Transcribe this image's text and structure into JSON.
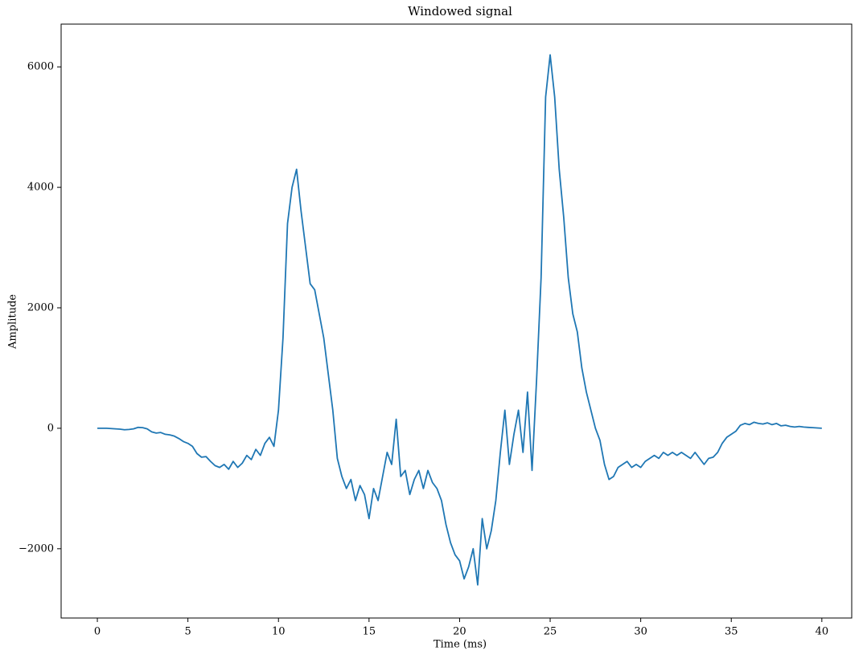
{
  "chart_data": {
    "type": "line",
    "title": "Windowed signal",
    "x_label": "Time (ms)",
    "y_label": "Amplitude",
    "x": [
      0,
      0.25,
      0.5,
      0.75,
      1,
      1.25,
      1.5,
      1.75,
      2,
      2.25,
      2.5,
      2.75,
      3,
      3.25,
      3.5,
      3.75,
      4,
      4.25,
      4.5,
      4.75,
      5,
      5.25,
      5.5,
      5.75,
      6,
      6.25,
      6.5,
      6.75,
      7,
      7.25,
      7.5,
      7.75,
      8,
      8.25,
      8.5,
      8.75,
      9,
      9.25,
      9.5,
      9.75,
      10,
      10.25,
      10.5,
      10.75,
      11,
      11.25,
      11.5,
      11.75,
      12,
      12.25,
      12.5,
      12.75,
      13,
      13.25,
      13.5,
      13.75,
      14,
      14.25,
      14.5,
      14.75,
      15,
      15.25,
      15.5,
      15.75,
      16,
      16.25,
      16.5,
      16.75,
      17,
      17.25,
      17.5,
      17.75,
      18,
      18.25,
      18.5,
      18.75,
      19,
      19.25,
      19.5,
      19.75,
      20,
      20.25,
      20.5,
      20.75,
      21,
      21.25,
      21.5,
      21.75,
      22,
      22.25,
      22.5,
      22.75,
      23,
      23.25,
      23.5,
      23.75,
      24,
      24.25,
      24.5,
      24.75,
      25,
      25.25,
      25.5,
      25.75,
      26,
      26.25,
      26.5,
      26.75,
      27,
      27.25,
      27.5,
      27.75,
      28,
      28.25,
      28.5,
      28.75,
      29,
      29.25,
      29.5,
      29.75,
      30,
      30.25,
      30.5,
      30.75,
      31,
      31.25,
      31.5,
      31.75,
      32,
      32.25,
      32.5,
      32.75,
      33,
      33.25,
      33.5,
      33.75,
      34,
      34.25,
      34.5,
      34.75,
      35,
      35.25,
      35.5,
      35.75,
      36,
      36.25,
      36.5,
      36.75,
      37,
      37.25,
      37.5,
      37.75,
      38,
      38.25,
      38.5,
      38.75,
      39,
      39.25,
      39.5,
      39.75,
      40
    ],
    "series": [
      {
        "color": "#1f77b4",
        "values": [
          0,
          0,
          0,
          -5,
          -10,
          -15,
          -25,
          -20,
          -10,
          15,
          10,
          -10,
          -60,
          -80,
          -70,
          -100,
          -110,
          -130,
          -170,
          -220,
          -250,
          -300,
          -420,
          -480,
          -470,
          -550,
          -620,
          -650,
          -600,
          -680,
          -550,
          -650,
          -580,
          -450,
          -520,
          -350,
          -450,
          -250,
          -150,
          -300,
          300,
          1500,
          3400,
          4000,
          4300,
          3600,
          3000,
          2400,
          2300,
          1900,
          1500,
          900,
          300,
          -500,
          -800,
          -1000,
          -850,
          -1200,
          -950,
          -1100,
          -1500,
          -1000,
          -1200,
          -800,
          -400,
          -600,
          150,
          -800,
          -700,
          -1100,
          -850,
          -700,
          -1000,
          -700,
          -900,
          -1000,
          -1200,
          -1600,
          -1900,
          -2100,
          -2200,
          -2500,
          -2300,
          -2000,
          -2600,
          -1500,
          -2000,
          -1700,
          -1200,
          -400,
          300,
          -600,
          -100,
          300,
          -400,
          600,
          -700,
          800,
          2500,
          5500,
          6200,
          5500,
          4300,
          3500,
          2500,
          1900,
          1600,
          1000,
          600,
          300,
          0,
          -200,
          -600,
          -850,
          -800,
          -650,
          -600,
          -550,
          -650,
          -600,
          -650,
          -550,
          -500,
          -450,
          -500,
          -400,
          -450,
          -400,
          -450,
          -400,
          -450,
          -500,
          -400,
          -500,
          -600,
          -500,
          -480,
          -400,
          -250,
          -150,
          -100,
          -50,
          50,
          80,
          60,
          100,
          80,
          70,
          90,
          60,
          80,
          40,
          50,
          30,
          20,
          30,
          20,
          15,
          10,
          5,
          0
        ]
      }
    ],
    "xlim": [
      -2,
      41.65
    ],
    "ylim": [
      -3150,
      6710
    ],
    "xticks": [
      0,
      5,
      10,
      15,
      20,
      25,
      30,
      35,
      40
    ],
    "yticks": [
      {
        "value": -2000,
        "label": "−2000"
      },
      0,
      2000,
      4000,
      6000
    ]
  }
}
